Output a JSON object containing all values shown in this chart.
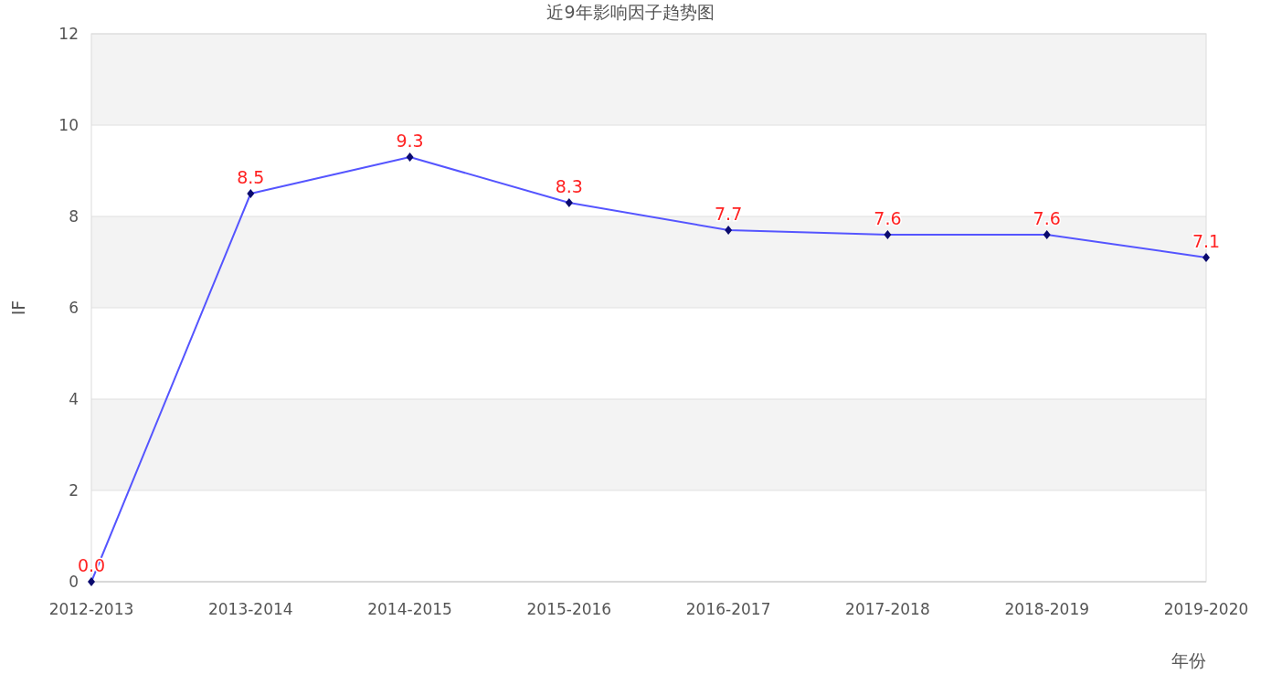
{
  "chart_data": {
    "type": "line",
    "title": "近9年影响因子趋势图",
    "xlabel": "年份",
    "ylabel": "IF",
    "categories": [
      "2012-2013",
      "2013-2014",
      "2014-2015",
      "2015-2016",
      "2016-2017",
      "2017-2018",
      "2018-2019",
      "2019-2020"
    ],
    "series": [
      {
        "color": "#5555ff",
        "values": [
          0.0,
          8.5,
          9.3,
          8.3,
          7.7,
          7.6,
          7.6,
          7.1
        ],
        "value_labels": [
          "0.0",
          "8.5",
          "9.3",
          "8.3",
          "7.7",
          "7.6",
          "7.6",
          "7.1"
        ]
      }
    ],
    "ylim": [
      0,
      12
    ],
    "yticks": [
      0,
      2,
      4,
      6,
      8,
      10,
      12
    ],
    "grid": "y",
    "marker": "diamond"
  }
}
